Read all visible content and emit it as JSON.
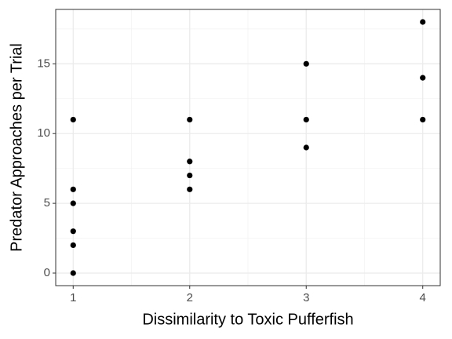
{
  "chart_data": {
    "type": "scatter",
    "x_label": "Dissimilarity to Toxic Pufferfish",
    "y_label": "Predator Approaches per Trial",
    "x": [
      1,
      1,
      1,
      1,
      1,
      1,
      2,
      2,
      2,
      2,
      3,
      3,
      3,
      4,
      4,
      4
    ],
    "y": [
      11,
      6,
      5,
      3,
      2,
      0,
      11,
      8,
      7,
      6,
      15,
      11,
      9,
      18,
      14,
      11
    ],
    "color": "#000000",
    "xlim": [
      0.85,
      4.15
    ],
    "xticks": [
      1,
      2,
      3,
      4
    ],
    "x_minor_grid": [
      1.5,
      2.5,
      3.5
    ],
    "ylim": [
      -0.9,
      18.9
    ],
    "yticks": [
      0,
      5,
      10,
      15
    ],
    "y_minor_grid": [
      2.5,
      7.5,
      12.5,
      17.5
    ],
    "grid": true
  }
}
